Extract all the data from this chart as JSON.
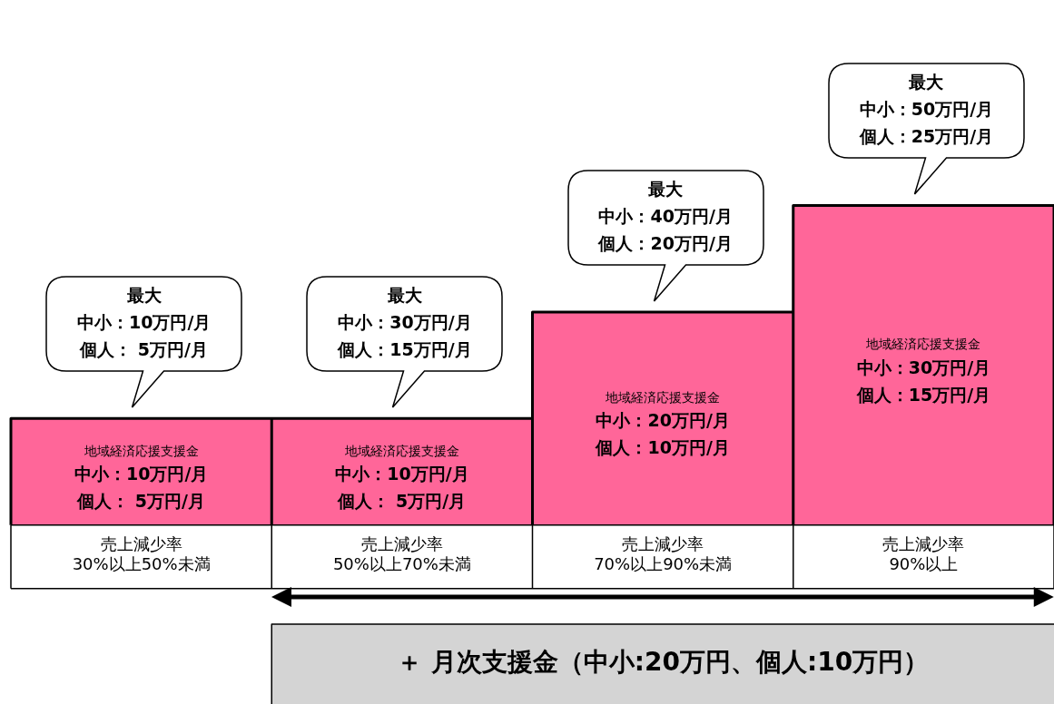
{
  "chart_data": {
    "type": "bar",
    "categories": [
      "売上減少率\n30%以上50%未満",
      "売上減少率\n50%以上70%未満",
      "売上減少率\n70%以上90%未満",
      "売上減少率\n90%以上"
    ],
    "values": [
      10,
      10,
      20,
      30
    ],
    "color": "#ff6699",
    "value_labels": [
      "地域経済応援支援金中小：10万円/月個人： 5万円/月",
      "地域経済応援支援金中小：10万円/月個人： 5万円/月",
      "地域経済応援支援金中小：20万円/月個人：10万円/月",
      "地域経済応援支援金中小：30万円/月個人：15万円/月"
    ],
    "annotations": [
      "最大中小：10万円/月個人： 5万円/月",
      "最大中小：30万円/月個人：15万円/月",
      "最大中小：40万円/月個人：20万円/月",
      "最大中小：50万円/月個人：25万円/月",
      "＋ 月次支援金（中小:20万円、個人:10万円）"
    ],
    "grid": false,
    "legend": false
  }
}
